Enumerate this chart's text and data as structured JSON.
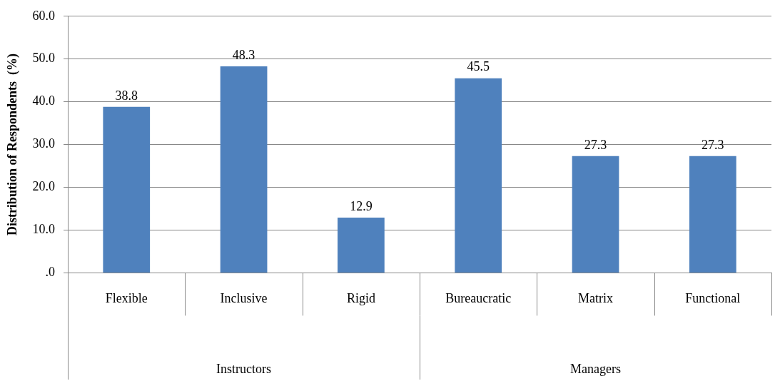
{
  "chart_data": {
    "type": "bar",
    "ylabel": "Distribution of Respondents  (%)",
    "categories": [
      "Flexible",
      "Inclusive",
      "Rigid",
      "Bureaucratic",
      "Matrix",
      "Functional"
    ],
    "values": [
      38.8,
      48.3,
      12.9,
      45.5,
      27.3,
      27.3
    ],
    "color": "#4f81bd",
    "ylim": [
      0,
      60
    ],
    "yticks": [
      {
        "value": 0,
        "label": ".0"
      },
      {
        "value": 10,
        "label": "10.0"
      },
      {
        "value": 20,
        "label": "20.0"
      },
      {
        "value": 30,
        "label": "30.0"
      },
      {
        "value": 40,
        "label": "40.0"
      },
      {
        "value": 50,
        "label": "50.0"
      },
      {
        "value": 60,
        "label": "60.0"
      }
    ],
    "grid": "y",
    "data_labels": true,
    "legend": false,
    "annotations": [
      "Instructors",
      "Managers"
    ]
  }
}
